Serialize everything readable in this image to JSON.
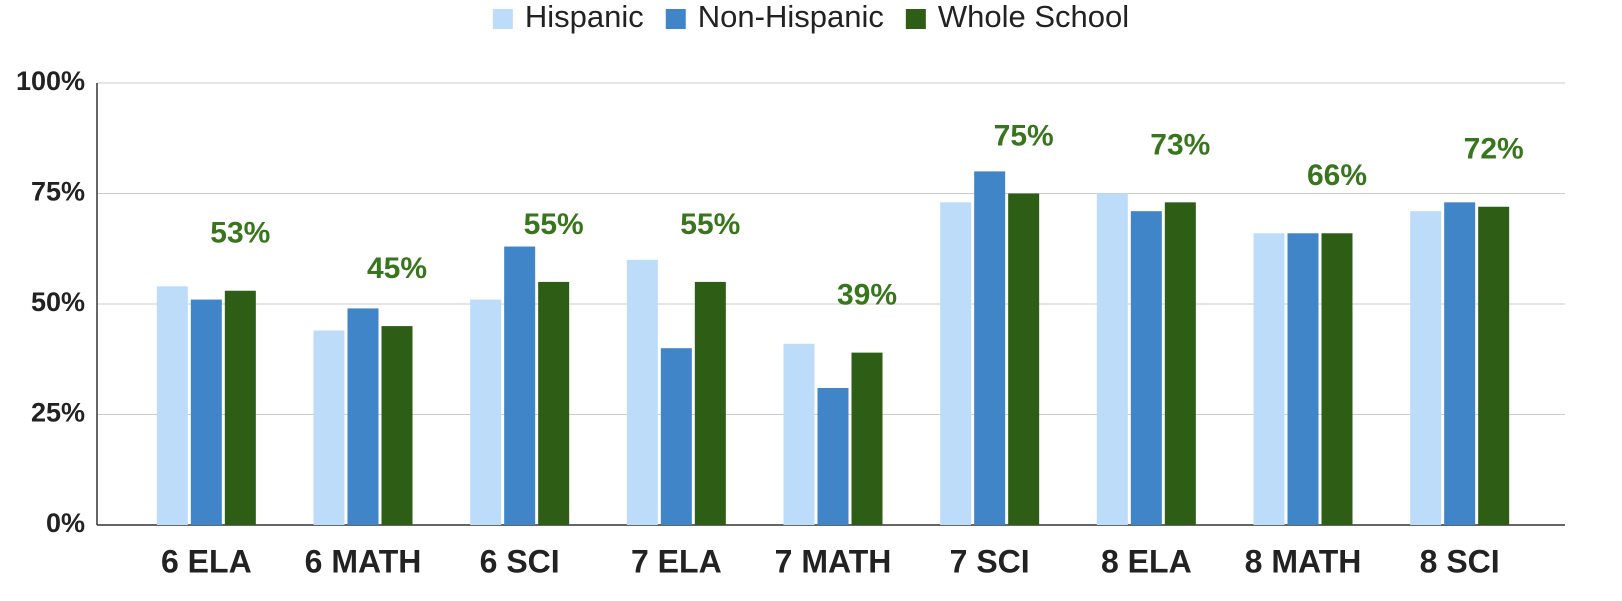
{
  "chart_data": {
    "type": "bar",
    "categories": [
      "6 ELA",
      "6 MATH",
      "6 SCI",
      "7 ELA",
      "7 MATH",
      "7 SCI",
      "8 ELA",
      "8 MATH",
      "8 SCI"
    ],
    "series": [
      {
        "name": "Hispanic",
        "color": "#bcdcf9",
        "values": [
          54,
          44,
          51,
          60,
          41,
          73,
          75,
          66,
          71
        ]
      },
      {
        "name": "Non-Hispanic",
        "color": "#3f85c8",
        "values": [
          51,
          49,
          63,
          40,
          31,
          80,
          71,
          66,
          73
        ]
      },
      {
        "name": "Whole School",
        "color": "#2e5e16",
        "values": [
          53,
          45,
          55,
          55,
          39,
          75,
          73,
          66,
          72
        ],
        "value_labels": [
          "53%",
          "45%",
          "55%",
          "55%",
          "39%",
          "75%",
          "73%",
          "66%",
          "72%"
        ],
        "label_color": "#38761d"
      }
    ],
    "ylim": [
      0,
      100
    ],
    "yticks": [
      {
        "value": 0,
        "label": "0%"
      },
      {
        "value": 25,
        "label": "25%"
      },
      {
        "value": 50,
        "label": "50%"
      },
      {
        "value": 75,
        "label": "75%"
      },
      {
        "value": 100,
        "label": "100%"
      }
    ],
    "grid": true,
    "legend": "top"
  }
}
